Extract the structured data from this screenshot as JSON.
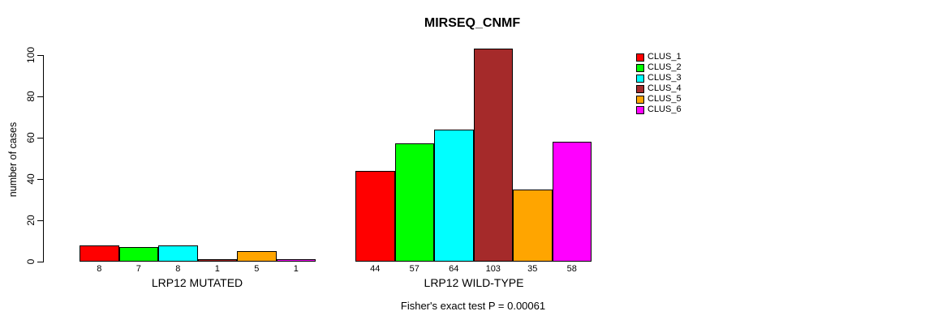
{
  "chart_data": {
    "type": "bar",
    "title": "MIRSEQ_CNMF",
    "ylabel": "number of cases",
    "xlabel": "",
    "ylim": [
      0,
      103
    ],
    "yticks": [
      0,
      20,
      40,
      60,
      80,
      100
    ],
    "grid": false,
    "legend_position": "top-right",
    "bar_value_labels": true,
    "categories": [
      "LRP12 MUTATED",
      "LRP12 WILD-TYPE"
    ],
    "series": [
      {
        "name": "CLUS_1",
        "color": "#FF0000",
        "values": [
          8,
          44
        ]
      },
      {
        "name": "CLUS_2",
        "color": "#00FF00",
        "values": [
          7,
          57
        ]
      },
      {
        "name": "CLUS_3",
        "color": "#00FFFF",
        "values": [
          8,
          64
        ]
      },
      {
        "name": "CLUS_4",
        "color": "#A52A2A",
        "values": [
          1,
          103
        ]
      },
      {
        "name": "CLUS_5",
        "color": "#FFA500",
        "values": [
          5,
          35
        ]
      },
      {
        "name": "CLUS_6",
        "color": "#FF00FF",
        "values": [
          1,
          58
        ]
      }
    ],
    "footnote": "Fisher's exact test P = 0.00061"
  }
}
